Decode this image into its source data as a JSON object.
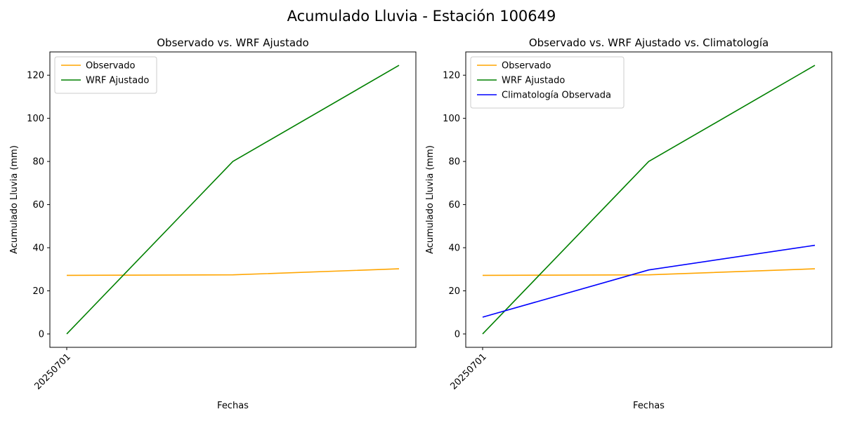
{
  "figure": {
    "title": "Acumulado Lluvia - Estación 100649"
  },
  "chart_data": [
    {
      "type": "line",
      "title": "Observado vs. WRF Ajustado",
      "xlabel": "Fechas",
      "ylabel": "Acumulado Lluvia (mm)",
      "x_tick_labels": [
        "20250701"
      ],
      "x": [
        0,
        1,
        2
      ],
      "ylim": [
        -6.2,
        130.8
      ],
      "yticks": [
        0,
        20,
        40,
        60,
        80,
        100,
        120
      ],
      "grid": false,
      "legend_position": "upper-left",
      "series": [
        {
          "name": "Observado",
          "color": "#FFA500",
          "values": [
            27.2,
            27.4,
            30.2
          ]
        },
        {
          "name": "WRF Ajustado",
          "color": "#008000",
          "values": [
            0.0,
            80.0,
            124.6
          ]
        }
      ]
    },
    {
      "type": "line",
      "title": "Observado vs. WRF Ajustado vs. Climatología",
      "xlabel": "Fechas",
      "ylabel": "Acumulado Lluvia (mm)",
      "x_tick_labels": [
        "20250701"
      ],
      "x": [
        0,
        1,
        2
      ],
      "ylim": [
        -6.2,
        130.8
      ],
      "yticks": [
        0,
        20,
        40,
        60,
        80,
        100,
        120
      ],
      "grid": false,
      "legend_position": "upper-left",
      "series": [
        {
          "name": "Observado",
          "color": "#FFA500",
          "values": [
            27.2,
            27.4,
            30.2
          ]
        },
        {
          "name": "WRF Ajustado",
          "color": "#008000",
          "values": [
            0.0,
            80.0,
            124.6
          ]
        },
        {
          "name": "Climatología Observada",
          "color": "#0000FF",
          "values": [
            7.8,
            29.7,
            41.1
          ]
        }
      ]
    }
  ]
}
